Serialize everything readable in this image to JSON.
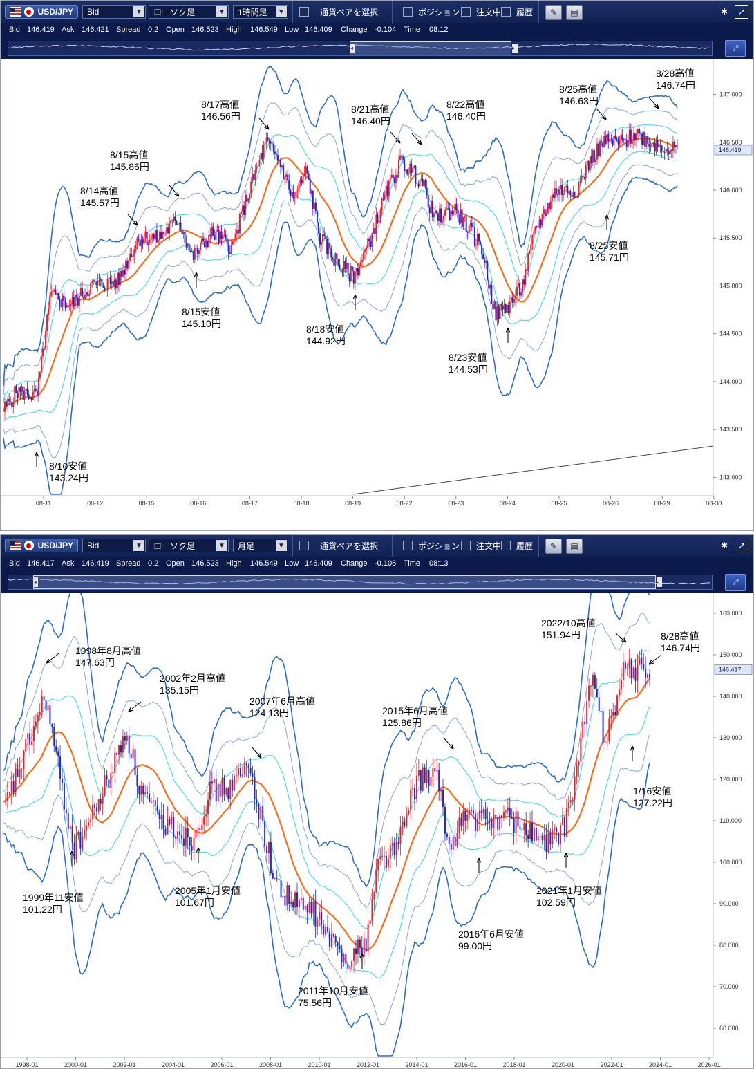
{
  "panels": [
    {
      "toolbar": {
        "pair": "USD/JPY",
        "price_type": "Bid",
        "chart_type": "ローソク足",
        "timeframe": "1時間足",
        "pair_select": "通貨ペアを選択",
        "position": "ポジション",
        "orders": "注文中",
        "history": "履歴"
      },
      "quote": {
        "bid_label": "Bid",
        "bid": "146.419",
        "ask_label": "Ask",
        "ask": "146.421",
        "spread_label": "Spread",
        "spread": "0.2",
        "open_label": "Open",
        "open": "146.523",
        "high_label": "High",
        "high": "146.549",
        "low_label": "Low",
        "low": "146.409",
        "change_label": "Change",
        "change": "-0.104",
        "time_label": "Time",
        "time": "08:12"
      },
      "navigator": {
        "window_start": 0.485,
        "window_end": 0.715
      },
      "chart_data": {
        "type": "candlestick",
        "price_axis": [
          "147.000",
          "146.500",
          "146.000",
          "145.500",
          "145.000",
          "144.500",
          "144.000",
          "143.500",
          "143.000"
        ],
        "time_axis": [
          "08-11",
          "08-12",
          "08-15",
          "08-16",
          "08-17",
          "08-18",
          "08-19",
          "08-22",
          "08-23",
          "08-24",
          "08-25",
          "08-26",
          "08-29",
          "08-30"
        ],
        "current_price": "146.419",
        "ylim": [
          142.75,
          147.3
        ],
        "close_path": [
          [
            0,
            143.7
          ],
          [
            0.02,
            143.9
          ],
          [
            0.05,
            143.85
          ],
          [
            0.07,
            144.9
          ],
          [
            0.1,
            144.8
          ],
          [
            0.13,
            145.0
          ],
          [
            0.17,
            145.05
          ],
          [
            0.2,
            145.5
          ],
          [
            0.23,
            145.5
          ],
          [
            0.26,
            145.7
          ],
          [
            0.28,
            145.3
          ],
          [
            0.31,
            145.55
          ],
          [
            0.34,
            145.4
          ],
          [
            0.36,
            145.9
          ],
          [
            0.39,
            146.5
          ],
          [
            0.41,
            146.3
          ],
          [
            0.43,
            145.9
          ],
          [
            0.45,
            146.2
          ],
          [
            0.47,
            145.5
          ],
          [
            0.5,
            145.2
          ],
          [
            0.52,
            145.1
          ],
          [
            0.54,
            145.4
          ],
          [
            0.57,
            146.0
          ],
          [
            0.59,
            146.3
          ],
          [
            0.62,
            146.1
          ],
          [
            0.64,
            145.7
          ],
          [
            0.67,
            145.8
          ],
          [
            0.69,
            145.6
          ],
          [
            0.71,
            145.4
          ],
          [
            0.73,
            144.7
          ],
          [
            0.75,
            144.8
          ],
          [
            0.77,
            145.0
          ],
          [
            0.79,
            145.6
          ],
          [
            0.82,
            146.0
          ],
          [
            0.85,
            146.0
          ],
          [
            0.87,
            146.3
          ],
          [
            0.89,
            146.5
          ],
          [
            0.92,
            146.5
          ],
          [
            0.94,
            146.6
          ],
          [
            0.96,
            146.5
          ],
          [
            1.0,
            146.42
          ]
        ],
        "annotations": [
          {
            "date": "8/10安値",
            "price": "143.24円"
          },
          {
            "date": "8/14高値",
            "price": "145.57円"
          },
          {
            "date": "8/15高値",
            "price": "145.86円"
          },
          {
            "date": "8/15安値",
            "price": "145.10円"
          },
          {
            "date": "8/17高値",
            "price": "146.56円"
          },
          {
            "date": "8/18安値",
            "price": "144.92円"
          },
          {
            "date": "8/21高値",
            "price": "146.40円"
          },
          {
            "date": "8/22高値",
            "price": "146.40円"
          },
          {
            "date": "8/23安値",
            "price": "144.53円"
          },
          {
            "date": "8/25高値",
            "price": "146.63円"
          },
          {
            "date": "8/25安値",
            "price": "145.71円"
          },
          {
            "date": "8/28高値",
            "price": "146.74円"
          }
        ]
      }
    },
    {
      "toolbar": {
        "pair": "USD/JPY",
        "price_type": "Bid",
        "chart_type": "ローソク足",
        "timeframe": "月足",
        "pair_select": "通貨ペアを選択",
        "position": "ポジション",
        "orders": "注文中",
        "history": "履歴"
      },
      "quote": {
        "bid_label": "Bid",
        "bid": "146.417",
        "ask_label": "Ask",
        "ask": "146.419",
        "spread_label": "Spread",
        "spread": "0.2",
        "open_label": "Open",
        "open": "146.523",
        "high_label": "High",
        "high": "146.549",
        "low_label": "Low",
        "low": "146.409",
        "change_label": "Change",
        "change": "-0.106",
        "time_label": "Time",
        "time": "08:13"
      },
      "navigator": {
        "window_start": 0.035,
        "window_end": 0.92
      },
      "chart_data": {
        "type": "candlestick",
        "price_axis": [
          "160.000",
          "150.000",
          "140.000",
          "130.000",
          "120.000",
          "110.000",
          "100.000",
          "90.000",
          "80.000",
          "70.000",
          "60.000"
        ],
        "time_axis": [
          "1998-01",
          "2000-01",
          "2002-01",
          "2004-01",
          "2006-01",
          "2008-01",
          "2010-01",
          "2012-01",
          "2014-01",
          "2016-01",
          "2018-01",
          "2020-01",
          "2022-01",
          "2024-01",
          "2026-01"
        ],
        "current_price": "146.417",
        "ylim": [
          55,
          164
        ],
        "close_path": [
          [
            0,
            112
          ],
          [
            0.03,
            125
          ],
          [
            0.065,
            140
          ],
          [
            0.09,
            118
          ],
          [
            0.11,
            103
          ],
          [
            0.14,
            112
          ],
          [
            0.17,
            123
          ],
          [
            0.19,
            132
          ],
          [
            0.21,
            118
          ],
          [
            0.24,
            110
          ],
          [
            0.27,
            108
          ],
          [
            0.29,
            105
          ],
          [
            0.32,
            117
          ],
          [
            0.35,
            118
          ],
          [
            0.38,
            123
          ],
          [
            0.4,
            110
          ],
          [
            0.42,
            95
          ],
          [
            0.45,
            90
          ],
          [
            0.48,
            88
          ],
          [
            0.51,
            80
          ],
          [
            0.53,
            77
          ],
          [
            0.56,
            80
          ],
          [
            0.58,
            100
          ],
          [
            0.61,
            104
          ],
          [
            0.64,
            120
          ],
          [
            0.67,
            121
          ],
          [
            0.69,
            103
          ],
          [
            0.71,
            111
          ],
          [
            0.74,
            110
          ],
          [
            0.78,
            111
          ],
          [
            0.81,
            108
          ],
          [
            0.84,
            104
          ],
          [
            0.87,
            109
          ],
          [
            0.89,
            125
          ],
          [
            0.91,
            145
          ],
          [
            0.93,
            130
          ],
          [
            0.95,
            140
          ],
          [
            0.96,
            146.4
          ]
        ],
        "annotations": [
          {
            "date": "1998年8月高値",
            "price": "147.63円"
          },
          {
            "date": "1999年11安値",
            "price": "101.22円"
          },
          {
            "date": "2002年2月高値",
            "price": "135.15円"
          },
          {
            "date": "2005年1月安値",
            "price": "101.67円"
          },
          {
            "date": "2007年6月高値",
            "price": "124.13円"
          },
          {
            "date": "2011年10月安値",
            "price": "75.56円"
          },
          {
            "date": "2015年6月高値",
            "price": "125.86円"
          },
          {
            "date": "2016年6月安値",
            "price": "99.00円"
          },
          {
            "date": "2021年1月安値",
            "price": "102.59円"
          },
          {
            "date": "2022/10高値",
            "price": "151.94円"
          },
          {
            "date": "1/16安値",
            "price": "127.22円"
          },
          {
            "date": "8/28高値",
            "price": "146.74円"
          }
        ]
      }
    }
  ]
}
